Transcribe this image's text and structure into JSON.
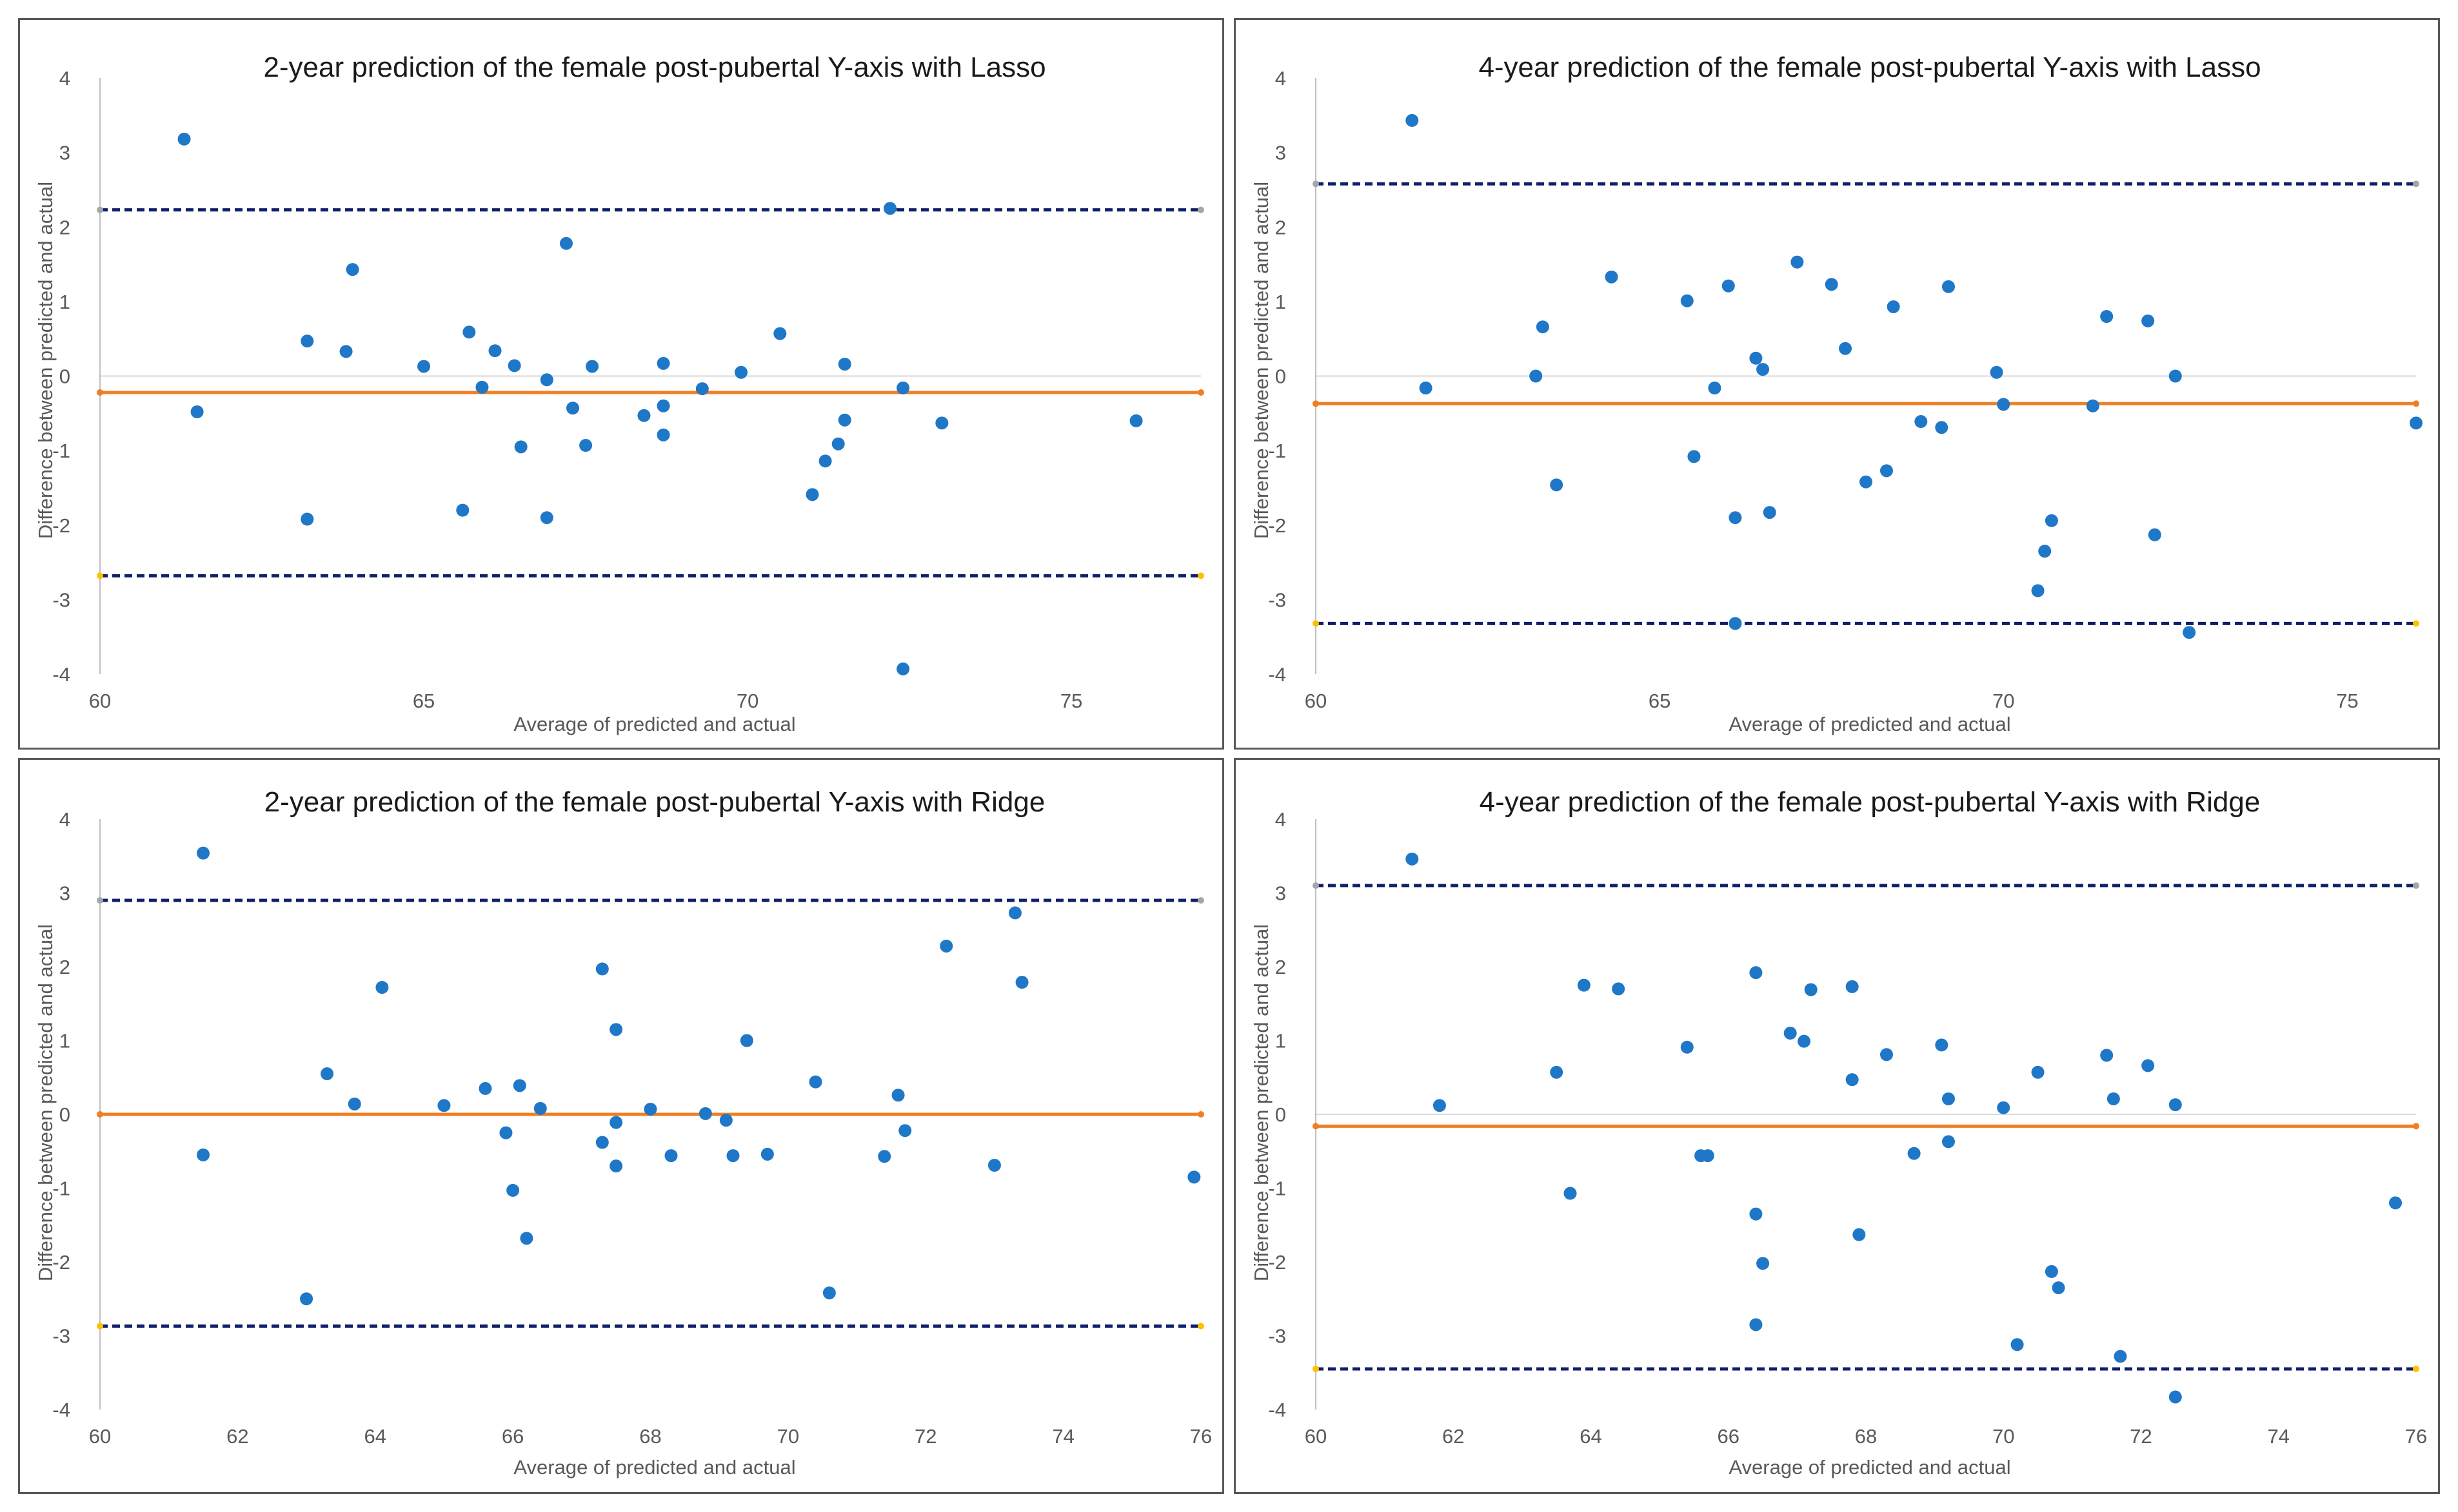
{
  "chart_data": [
    {
      "type": "scatter",
      "title": "2-year prediction of the female post-pubertal Y-axis with Lasso",
      "xlabel": "Average of predicted and actual",
      "ylabel": "Difference between predicted and actual",
      "xlim": [
        60,
        77
      ],
      "ylim": [
        -4,
        4
      ],
      "xticks": [
        60,
        65,
        70,
        75
      ],
      "yticks": [
        -4,
        -3,
        -2,
        -1,
        0,
        1,
        2,
        3,
        4
      ],
      "mean_diff": -0.22,
      "upper_loa": 2.23,
      "lower_loa": -2.68,
      "points": [
        [
          61.3,
          3.18
        ],
        [
          61.5,
          -0.48
        ],
        [
          63.2,
          0.47
        ],
        [
          63.2,
          -1.92
        ],
        [
          63.8,
          0.33
        ],
        [
          63.9,
          1.43
        ],
        [
          65.0,
          0.13
        ],
        [
          65.6,
          -1.8
        ],
        [
          65.7,
          0.59
        ],
        [
          65.9,
          -0.15
        ],
        [
          66.1,
          0.34
        ],
        [
          66.4,
          0.14
        ],
        [
          66.5,
          -0.95
        ],
        [
          66.9,
          -1.9
        ],
        [
          66.9,
          -0.05
        ],
        [
          67.2,
          1.78
        ],
        [
          67.3,
          -0.43
        ],
        [
          67.5,
          -0.93
        ],
        [
          67.6,
          0.13
        ],
        [
          68.4,
          -0.53
        ],
        [
          68.7,
          0.17
        ],
        [
          68.7,
          -0.4
        ],
        [
          68.7,
          -0.79
        ],
        [
          69.3,
          -0.17
        ],
        [
          69.9,
          0.05
        ],
        [
          70.5,
          0.57
        ],
        [
          71.0,
          -1.59
        ],
        [
          71.2,
          -1.14
        ],
        [
          71.4,
          -0.91
        ],
        [
          71.5,
          -0.59
        ],
        [
          71.5,
          0.16
        ],
        [
          72.2,
          2.25
        ],
        [
          72.4,
          -0.16
        ],
        [
          72.4,
          -3.93
        ],
        [
          73.0,
          -0.63
        ],
        [
          76.0,
          -0.6
        ]
      ]
    },
    {
      "type": "scatter",
      "title": "4-year prediction of the female post-pubertal Y-axis with Lasso",
      "xlabel": "Average of predicted and actual",
      "ylabel": "Difference between predicted and actual",
      "xlim": [
        60,
        76
      ],
      "ylim": [
        -4,
        4
      ],
      "xticks": [
        60,
        65,
        70,
        75
      ],
      "yticks": [
        -4,
        -3,
        -2,
        -1,
        0,
        1,
        2,
        3,
        4
      ],
      "mean_diff": -0.37,
      "upper_loa": 2.58,
      "lower_loa": -3.32,
      "points": [
        [
          61.4,
          3.43
        ],
        [
          61.6,
          -0.16
        ],
        [
          63.2,
          0.0
        ],
        [
          63.3,
          0.66
        ],
        [
          63.5,
          -1.46
        ],
        [
          64.3,
          1.33
        ],
        [
          65.4,
          1.01
        ],
        [
          65.5,
          -1.08
        ],
        [
          65.8,
          -0.16
        ],
        [
          66.0,
          1.21
        ],
        [
          66.1,
          -1.9
        ],
        [
          66.1,
          -3.32
        ],
        [
          66.4,
          0.24
        ],
        [
          66.5,
          0.09
        ],
        [
          66.6,
          -1.83
        ],
        [
          67.0,
          1.53
        ],
        [
          67.5,
          1.23
        ],
        [
          67.7,
          0.37
        ],
        [
          68.0,
          -1.42
        ],
        [
          68.3,
          -1.27
        ],
        [
          68.4,
          0.93
        ],
        [
          68.8,
          -0.61
        ],
        [
          69.1,
          -0.69
        ],
        [
          69.2,
          1.2
        ],
        [
          69.9,
          0.05
        ],
        [
          70.0,
          -0.38
        ],
        [
          70.5,
          -2.88
        ],
        [
          70.6,
          -2.35
        ],
        [
          70.7,
          -1.94
        ],
        [
          71.3,
          -0.4
        ],
        [
          71.5,
          0.8
        ],
        [
          72.1,
          0.74
        ],
        [
          72.2,
          -2.13
        ],
        [
          72.5,
          0.0
        ],
        [
          72.7,
          -3.44
        ],
        [
          76.0,
          -0.63
        ]
      ]
    },
    {
      "type": "scatter",
      "title": "2-year prediction of the female post-pubertal Y-axis with Ridge",
      "xlabel": "Average of predicted and actual",
      "ylabel": "Difference between predicted and actual",
      "xlim": [
        60,
        76
      ],
      "ylim": [
        -4,
        4
      ],
      "xticks": [
        60,
        62,
        64,
        66,
        68,
        70,
        72,
        74,
        76
      ],
      "yticks": [
        -4,
        -3,
        -2,
        -1,
        0,
        1,
        2,
        3,
        4
      ],
      "mean_diff": 0.0,
      "upper_loa": 2.9,
      "lower_loa": -2.87,
      "points": [
        [
          61.5,
          3.54
        ],
        [
          61.5,
          -0.55
        ],
        [
          63.0,
          -2.5
        ],
        [
          63.3,
          0.55
        ],
        [
          63.7,
          0.14
        ],
        [
          64.1,
          1.72
        ],
        [
          65.0,
          0.12
        ],
        [
          65.6,
          0.35
        ],
        [
          65.9,
          -0.25
        ],
        [
          66.0,
          -1.03
        ],
        [
          66.1,
          0.39
        ],
        [
          66.2,
          -1.68
        ],
        [
          66.4,
          0.08
        ],
        [
          67.3,
          1.97
        ],
        [
          67.3,
          -0.38
        ],
        [
          67.5,
          -0.11
        ],
        [
          67.5,
          -0.7
        ],
        [
          67.5,
          1.15
        ],
        [
          68.0,
          0.07
        ],
        [
          68.3,
          -0.56
        ],
        [
          68.8,
          0.01
        ],
        [
          69.1,
          -0.08
        ],
        [
          69.2,
          -0.56
        ],
        [
          69.4,
          1.0
        ],
        [
          69.7,
          -0.54
        ],
        [
          70.4,
          0.44
        ],
        [
          70.6,
          -2.42
        ],
        [
          71.4,
          -0.57
        ],
        [
          71.6,
          0.26
        ],
        [
          71.7,
          -0.22
        ],
        [
          72.3,
          2.28
        ],
        [
          73.0,
          -0.69
        ],
        [
          73.3,
          2.73
        ],
        [
          73.4,
          1.79
        ],
        [
          75.9,
          -0.85
        ]
      ]
    },
    {
      "type": "scatter",
      "title": "4-year prediction of the female post-pubertal Y-axis with Ridge",
      "xlabel": "Average of predicted and actual",
      "ylabel": "Difference between predicted and actual",
      "xlim": [
        60,
        76
      ],
      "ylim": [
        -4,
        4
      ],
      "xticks": [
        60,
        62,
        64,
        66,
        68,
        70,
        72,
        74,
        76
      ],
      "yticks": [
        -4,
        -3,
        -2,
        -1,
        0,
        1,
        2,
        3,
        4
      ],
      "mean_diff": -0.16,
      "upper_loa": 3.1,
      "lower_loa": -3.45,
      "points": [
        [
          61.4,
          3.46
        ],
        [
          61.8,
          0.12
        ],
        [
          63.5,
          0.57
        ],
        [
          63.7,
          -1.07
        ],
        [
          63.9,
          1.75
        ],
        [
          64.4,
          1.7
        ],
        [
          65.4,
          0.91
        ],
        [
          65.6,
          -0.56
        ],
        [
          65.7,
          -0.56
        ],
        [
          66.4,
          1.92
        ],
        [
          66.4,
          -1.35
        ],
        [
          66.4,
          -2.85
        ],
        [
          66.5,
          -2.02
        ],
        [
          66.9,
          1.1
        ],
        [
          67.1,
          0.99
        ],
        [
          67.2,
          1.69
        ],
        [
          67.8,
          0.47
        ],
        [
          67.8,
          1.73
        ],
        [
          67.9,
          -1.63
        ],
        [
          68.3,
          0.81
        ],
        [
          68.7,
          -0.53
        ],
        [
          69.1,
          0.94
        ],
        [
          69.2,
          0.21
        ],
        [
          69.2,
          -0.37
        ],
        [
          70.0,
          0.09
        ],
        [
          70.2,
          -3.12
        ],
        [
          70.5,
          0.57
        ],
        [
          70.7,
          -2.13
        ],
        [
          70.8,
          -2.35
        ],
        [
          71.5,
          0.8
        ],
        [
          71.6,
          0.21
        ],
        [
          71.7,
          -3.28
        ],
        [
          72.1,
          0.66
        ],
        [
          72.5,
          0.13
        ],
        [
          72.5,
          -3.83
        ],
        [
          75.7,
          -1.2
        ]
      ]
    }
  ],
  "colors": {
    "points": "#1f77c8",
    "mean_line": "#f07f23",
    "loa_line": "#0e1f6b",
    "zero_line": "#d9d9d9",
    "axis": "#bfbfbf",
    "upper_end_marker": "#a6a6a6",
    "lower_end_marker": "#ffc000"
  }
}
